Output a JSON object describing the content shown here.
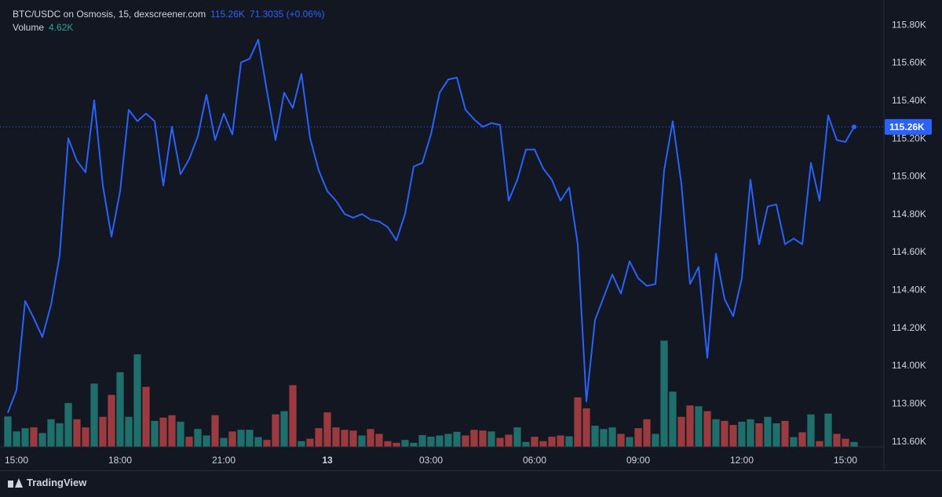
{
  "legend": {
    "title": "BTC/USDC on Osmosis, 15, dexscreener.com",
    "price_value": "115.26K",
    "price_detail": "71.3035 (+0.06%)",
    "volume_label": "Volume",
    "volume_value": "4.62K"
  },
  "branding": {
    "name": "TradingView",
    "icon": "tradingview-logo-icon"
  },
  "colors": {
    "background": "#131722",
    "line": "#2962ff",
    "volume_up": "#26a69a",
    "volume_down": "#ef5350",
    "price_tag": "#2962ff",
    "axis_text": "#d1d4dc"
  },
  "chart_data": {
    "type": "line",
    "series": [
      {
        "values": [
          113.75,
          113.87,
          114.34,
          114.25,
          114.15,
          114.32,
          114.58,
          115.2,
          115.08,
          115.02,
          115.4,
          114.95,
          114.68,
          114.92,
          115.35,
          115.29,
          115.33,
          115.29,
          114.95,
          115.26,
          115.01,
          115.09,
          115.21,
          115.43,
          115.19,
          115.33,
          115.22,
          115.6,
          115.62,
          115.72,
          115.45,
          115.19,
          115.44,
          115.36,
          115.54,
          115.2,
          115.03,
          114.92,
          114.87,
          114.8,
          114.78,
          114.8,
          114.77,
          114.76,
          114.73,
          114.66,
          114.8,
          115.05,
          115.07,
          115.22,
          115.44,
          115.51,
          115.52,
          115.35,
          115.3,
          115.26,
          115.28,
          115.27,
          114.87,
          114.98,
          115.14,
          115.14,
          115.04,
          114.98,
          114.87,
          114.94,
          114.64,
          113.81,
          114.24,
          114.36,
          114.48,
          114.38,
          114.55,
          114.46,
          114.42,
          114.43,
          115.03,
          115.29,
          114.96,
          114.43,
          114.52,
          114.04,
          114.59,
          114.35,
          114.26,
          114.46,
          114.98,
          114.64,
          114.84,
          114.85,
          114.64,
          114.67,
          114.64,
          115.07,
          114.87,
          115.32,
          115.19,
          115.18,
          115.26
        ]
      },
      {
        "name": "Volume",
        "values": [
          0.75,
          0.38,
          0.46,
          0.48,
          0.34,
          0.68,
          0.58,
          1.08,
          0.68,
          0.48,
          1.56,
          0.74,
          1.28,
          1.84,
          0.74,
          2.28,
          1.48,
          0.64,
          0.72,
          0.78,
          0.62,
          0.25,
          0.44,
          0.28,
          0.78,
          0.22,
          0.38,
          0.42,
          0.42,
          0.24,
          0.17,
          0.8,
          0.88,
          1.52,
          0.14,
          0.2,
          0.46,
          0.85,
          0.48,
          0.42,
          0.4,
          0.28,
          0.44,
          0.32,
          0.14,
          0.1,
          0.17,
          0.1,
          0.29,
          0.25,
          0.28,
          0.32,
          0.37,
          0.28,
          0.42,
          0.4,
          0.38,
          0.22,
          0.3,
          0.48,
          0.12,
          0.25,
          0.14,
          0.25,
          0.28,
          0.26,
          1.22,
          0.95,
          0.52,
          0.44,
          0.48,
          0.32,
          0.24,
          0.46,
          0.68,
          0.32,
          2.62,
          1.36,
          0.74,
          1.02,
          1.0,
          0.88,
          0.68,
          0.64,
          0.54,
          0.62,
          0.68,
          0.58,
          0.74,
          0.58,
          0.64,
          0.24,
          0.36,
          0.8,
          0.14,
          0.82,
          0.32,
          0.2,
          0.12
        ],
        "up": [
          1,
          1,
          1,
          0,
          1,
          1,
          1,
          1,
          0,
          0,
          1,
          0,
          0,
          1,
          1,
          1,
          0,
          1,
          0,
          0,
          1,
          0,
          1,
          1,
          0,
          1,
          0,
          1,
          1,
          1,
          0,
          0,
          1,
          0,
          1,
          0,
          0,
          0,
          0,
          0,
          0,
          1,
          0,
          0,
          0,
          0,
          1,
          1,
          1,
          1,
          1,
          1,
          1,
          0,
          0,
          0,
          1,
          0,
          0,
          1,
          1,
          0,
          0,
          0,
          0,
          1,
          0,
          0,
          1,
          1,
          1,
          0,
          1,
          0,
          0,
          1,
          1,
          1,
          0,
          0,
          1,
          0,
          1,
          0,
          0,
          1,
          1,
          0,
          1,
          1,
          0,
          1,
          0,
          1,
          0,
          1,
          0,
          0,
          1
        ]
      }
    ],
    "x_tick_labels": [
      "15:00",
      "18:00",
      "21:00",
      "13",
      "03:00",
      "06:00",
      "09:00",
      "12:00",
      "15:00"
    ],
    "x_tick_index": [
      1,
      13,
      25,
      37,
      49,
      61,
      73,
      85,
      97
    ],
    "y_tick_labels": [
      "115.80K",
      "115.60K",
      "115.40K",
      "115.20K",
      "115.00K",
      "114.80K",
      "114.60K",
      "114.40K",
      "114.20K",
      "114.00K",
      "113.80K",
      "113.60K"
    ],
    "y_ticks": [
      115.8,
      115.6,
      115.4,
      115.2,
      115.0,
      114.8,
      114.6,
      114.4,
      114.2,
      114.0,
      113.8,
      113.6
    ],
    "ylim": [
      113.57,
      115.93
    ],
    "volume_max": 2.9,
    "last_price": 115.26,
    "last_price_label": "115.26K",
    "grid": false
  }
}
